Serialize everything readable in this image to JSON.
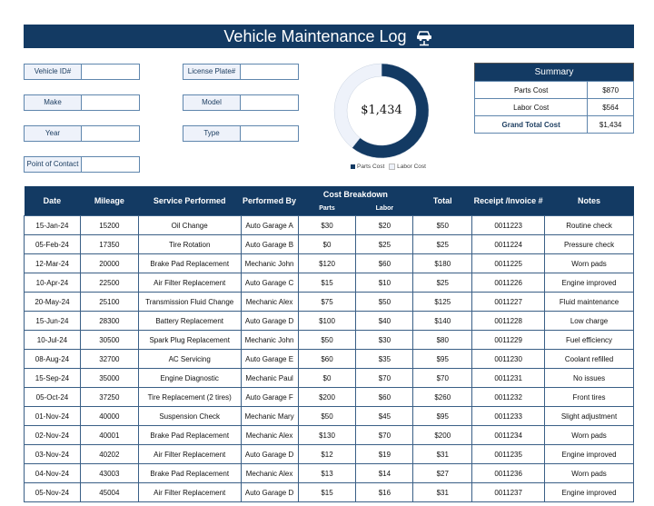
{
  "header": {
    "title": "Vehicle Maintenance Log",
    "icon": "car-lift-icon"
  },
  "fields": [
    {
      "label": "Vehicle ID#",
      "value": ""
    },
    {
      "label": "License Plate#",
      "value": ""
    },
    {
      "label": "Make",
      "value": ""
    },
    {
      "label": "Model",
      "value": ""
    },
    {
      "label": "Year",
      "value": ""
    },
    {
      "label": "Type",
      "value": ""
    },
    {
      "label": "Point of Contact",
      "value": ""
    }
  ],
  "chart_data": {
    "type": "pie",
    "variant": "donut",
    "center_label": "$1,434",
    "categories": [
      "Parts Cost",
      "Labor Cost"
    ],
    "values": [
      870,
      564
    ],
    "colors": [
      "#133a63",
      "#eef2fa"
    ],
    "legend": "bottom"
  },
  "summary": {
    "title": "Summary",
    "rows": [
      {
        "label": "Parts Cost",
        "value": "$870"
      },
      {
        "label": "Labor Cost",
        "value": "$564"
      },
      {
        "label": "Grand Total Cost",
        "value": "$1,434"
      }
    ]
  },
  "table": {
    "headers": {
      "date": "Date",
      "mileage": "Mileage",
      "service": "Service Performed",
      "by": "Performed By",
      "cost": "Cost Breakdown",
      "parts": "Parts",
      "labor": "Labor",
      "total": "Total",
      "receipt": "Receipt /Invoice #",
      "notes": "Notes"
    },
    "rows": [
      [
        "15-Jan-24",
        "15200",
        "Oil Change",
        "Auto Garage A",
        "$30",
        "$20",
        "$50",
        "0011223",
        "Routine check"
      ],
      [
        "05-Feb-24",
        "17350",
        "Tire Rotation",
        "Auto Garage B",
        "$0",
        "$25",
        "$25",
        "0011224",
        "Pressure check"
      ],
      [
        "12-Mar-24",
        "20000",
        "Brake Pad Replacement",
        "Mechanic John",
        "$120",
        "$60",
        "$180",
        "0011225",
        "Worn pads"
      ],
      [
        "10-Apr-24",
        "22500",
        "Air Filter Replacement",
        "Auto Garage C",
        "$15",
        "$10",
        "$25",
        "0011226",
        "Engine improved"
      ],
      [
        "20-May-24",
        "25100",
        "Transmission Fluid Change",
        "Mechanic Alex",
        "$75",
        "$50",
        "$125",
        "0011227",
        "Fluid maintenance"
      ],
      [
        "15-Jun-24",
        "28300",
        "Battery Replacement",
        "Auto Garage D",
        "$100",
        "$40",
        "$140",
        "0011228",
        "Low charge"
      ],
      [
        "10-Jul-24",
        "30500",
        "Spark Plug Replacement",
        "Mechanic John",
        "$50",
        "$30",
        "$80",
        "0011229",
        "Fuel efficiency"
      ],
      [
        "08-Aug-24",
        "32700",
        "AC Servicing",
        "Auto Garage E",
        "$60",
        "$35",
        "$95",
        "0011230",
        "Coolant refilled"
      ],
      [
        "15-Sep-24",
        "35000",
        "Engine Diagnostic",
        "Mechanic Paul",
        "$0",
        "$70",
        "$70",
        "0011231",
        "No issues"
      ],
      [
        "05-Oct-24",
        "37250",
        "Tire Replacement (2 tires)",
        "Auto Garage F",
        "$200",
        "$60",
        "$260",
        "0011232",
        "Front tires"
      ],
      [
        "01-Nov-24",
        "40000",
        "Suspension Check",
        "Mechanic Mary",
        "$50",
        "$45",
        "$95",
        "0011233",
        "Slight adjustment"
      ],
      [
        "02-Nov-24",
        "40001",
        "Brake Pad Replacement",
        "Mechanic Alex",
        "$130",
        "$70",
        "$200",
        "0011234",
        "Worn pads"
      ],
      [
        "03-Nov-24",
        "40202",
        "Air Filter Replacement",
        "Auto Garage D",
        "$12",
        "$19",
        "$31",
        "0011235",
        "Engine improved"
      ],
      [
        "04-Nov-24",
        "43003",
        "Brake Pad Replacement",
        "Mechanic Alex",
        "$13",
        "$14",
        "$27",
        "0011236",
        "Worn pads"
      ],
      [
        "05-Nov-24",
        "45004",
        "Air Filter Replacement",
        "Auto Garage D",
        "$15",
        "$16",
        "$31",
        "0011237",
        "Engine improved"
      ]
    ]
  }
}
